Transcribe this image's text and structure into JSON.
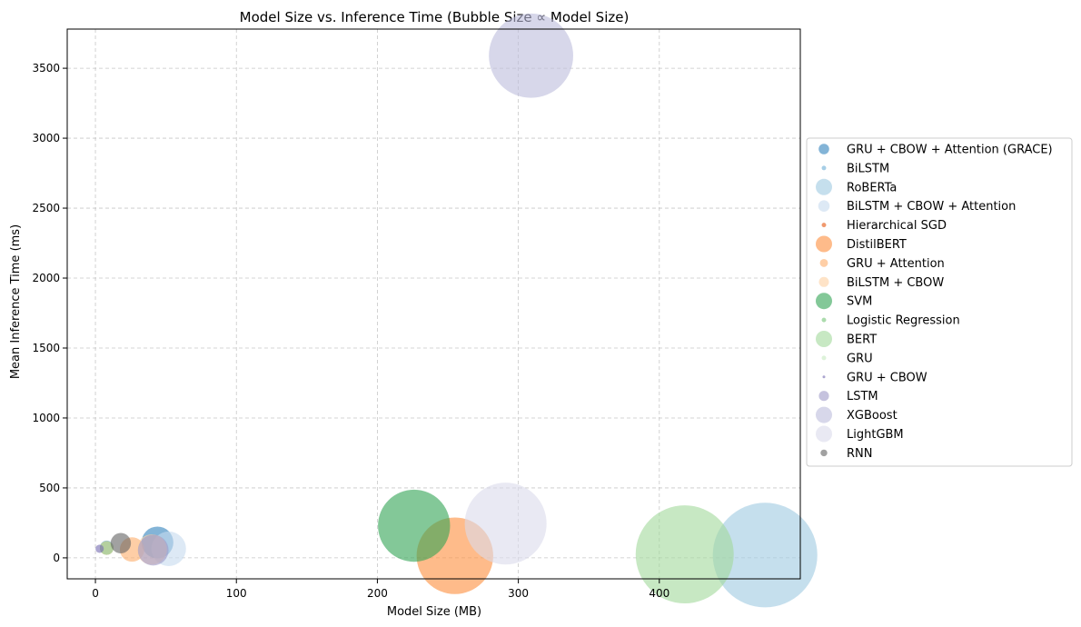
{
  "chart_data": {
    "type": "scatter",
    "title": "Model Size vs. Inference Time (Bubble Size ∝ Model Size)",
    "xlabel": "Model Size (MB)",
    "ylabel": "Mean Inference Time (ms)",
    "xlim": [
      -20,
      500
    ],
    "ylim": [
      -150,
      3780
    ],
    "xticks": [
      0,
      100,
      200,
      300,
      400
    ],
    "yticks": [
      0,
      500,
      1000,
      1500,
      2000,
      2500,
      3000,
      3500
    ],
    "grid": true,
    "legend_position": "right",
    "series": [
      {
        "name": "GRU + CBOW + Attention (GRACE)",
        "color": "#3182bd",
        "alpha": 0.6,
        "x": 44,
        "y": 110
      },
      {
        "name": "BiLSTM",
        "color": "#6baed6",
        "alpha": 0.6,
        "x": 8,
        "y": 75
      },
      {
        "name": "RoBERTa",
        "color": "#9ecae1",
        "alpha": 0.6,
        "x": 475,
        "y": 20
      },
      {
        "name": "BiLSTM + CBOW + Attention",
        "color": "#c6dbef",
        "alpha": 0.6,
        "x": 52,
        "y": 65
      },
      {
        "name": "Hierarchical SGD",
        "color": "#e6550d",
        "alpha": 0.6,
        "x": 8,
        "y": 70
      },
      {
        "name": "DistilBERT",
        "color": "#fd8d3c",
        "alpha": 0.6,
        "x": 255,
        "y": 15
      },
      {
        "name": "GRU + Attention",
        "color": "#fdae6b",
        "alpha": 0.6,
        "x": 26,
        "y": 60
      },
      {
        "name": "BiLSTM + CBOW",
        "color": "#fdd0a2",
        "alpha": 0.6,
        "x": 40,
        "y": 60
      },
      {
        "name": "SVM",
        "color": "#31a354",
        "alpha": 0.6,
        "x": 226,
        "y": 230
      },
      {
        "name": "Logistic Regression",
        "color": "#74c476",
        "alpha": 0.6,
        "x": 8,
        "y": 70
      },
      {
        "name": "BERT",
        "color": "#a1d99b",
        "alpha": 0.6,
        "x": 418,
        "y": 25
      },
      {
        "name": "GRU",
        "color": "#c7e9c0",
        "alpha": 0.6,
        "x": 8,
        "y": 70
      },
      {
        "name": "GRU + CBOW",
        "color": "#756bb1",
        "alpha": 0.6,
        "x": 3,
        "y": 65
      },
      {
        "name": "LSTM",
        "color": "#9e9ac8",
        "alpha": 0.6,
        "x": 41,
        "y": 55
      },
      {
        "name": "XGBoost",
        "color": "#bcbddc",
        "alpha": 0.6,
        "x": 309,
        "y": 3590
      },
      {
        "name": "LightGBM",
        "color": "#dadaeb",
        "alpha": 0.6,
        "x": 291,
        "y": 245
      },
      {
        "name": "RNN",
        "color": "#636363",
        "alpha": 0.6,
        "x": 18,
        "y": 105
      }
    ]
  }
}
